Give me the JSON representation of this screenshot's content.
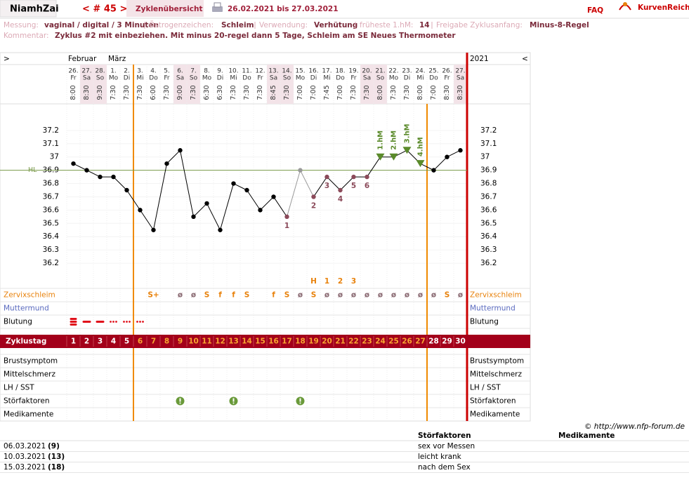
{
  "header": {
    "user": "NiamhZai",
    "cycle": "< # 45 >",
    "tab": "Zyklenübersicht",
    "range": "26.02.2021 bis 27.03.2021",
    "faq": "FAQ",
    "brand": "KurvenReich"
  },
  "info": [
    {
      "label": "Messung:",
      "value": "vaginal / digital / 3 Minuten"
    },
    {
      "label": "Östrogenzeichen:",
      "value": "Schleim"
    },
    {
      "label": "Verwendung:",
      "value": "Verhütung"
    },
    {
      "label": "früheste 1.hM:",
      "value": 14
    },
    {
      "label": "Freigabe Zyklusanfang:",
      "value": "Minus-8-Regel"
    }
  ],
  "comment": {
    "label": "Kommentar:",
    "text": "Zyklus #2  mit einbeziehen. Mit minus 20-regel dann 5 Tage,  Schleim am SE Neues Thermometer"
  },
  "chart_data": {
    "type": "line",
    "nav_left": ">",
    "nav_right": "<",
    "year": "2021",
    "months": [
      "Februar",
      null,
      null,
      "März",
      null,
      null,
      null,
      null,
      null,
      null,
      null,
      null,
      null,
      null,
      null,
      null,
      null,
      null,
      null,
      null,
      null,
      null,
      null,
      null,
      null,
      null,
      null,
      null,
      null,
      null
    ],
    "categories": [
      "26.",
      "27.",
      "28.",
      "1.",
      "2.",
      "3.",
      "4.",
      "5.",
      "6.",
      "7.",
      "8.",
      "9.",
      "10.",
      "11.",
      "12.",
      "13.",
      "14.",
      "15.",
      "16.",
      "17.",
      "18.",
      "19.",
      "20.",
      "21.",
      "22.",
      "23.",
      "24.",
      "25.",
      "26.",
      "27."
    ],
    "weekdays": [
      "Fr",
      "Sa",
      "So",
      "Mo",
      "Di",
      "Mi",
      "Do",
      "Fr",
      "Sa",
      "So",
      "Mo",
      "Di",
      "Mi",
      "Do",
      "Fr",
      "Sa",
      "So",
      "Mo",
      "Di",
      "Mi",
      "Do",
      "Fr",
      "Sa",
      "So",
      "Mo",
      "Di",
      "Mi",
      "Do",
      "Fr",
      "Sa"
    ],
    "times": [
      "8:00",
      "8:30",
      "9:30",
      "7:30",
      "7:30",
      "7:30",
      "6:00",
      "7:30",
      "9:00",
      "7:30",
      "6:30",
      "6:30",
      "7:30",
      "7:30",
      "7:30",
      "8:45",
      "7:30",
      "7:00",
      "7:00",
      "7:45",
      "7:00",
      "7:30",
      "7:30",
      "8:00",
      "7:30",
      "7:30",
      "8:00",
      "7:00",
      "8:30",
      "8:30"
    ],
    "values": [
      36.95,
      36.9,
      36.85,
      36.85,
      36.75,
      36.6,
      36.45,
      36.95,
      37.05,
      36.55,
      36.65,
      36.45,
      36.8,
      36.75,
      36.6,
      36.7,
      36.55,
      36.9,
      36.7,
      36.85,
      36.75,
      36.85,
      36.85,
      37.0,
      37.0,
      37.05,
      36.95,
      36.9,
      37.0,
      37.05
    ],
    "point_colors": [
      "#000",
      "#000",
      "#000",
      "#000",
      "#000",
      "#000",
      "#000",
      "#000",
      "#000",
      "#000",
      "#000",
      "#000",
      "#000",
      "#000",
      "#000",
      "#000",
      "#8b4a5a",
      "#999",
      "#8b4a5a",
      "#8b4a5a",
      "#8b4a5a",
      "#8b4a5a",
      "#8b4a5a",
      "#5a8a2a",
      "#5a8a2a",
      "#5a8a2a",
      "#5a8a2a",
      "#000",
      "#000",
      "#000"
    ],
    "point_labels": [
      null,
      null,
      null,
      null,
      null,
      null,
      null,
      null,
      null,
      null,
      null,
      null,
      null,
      null,
      null,
      null,
      "1",
      null,
      "2",
      "3",
      "4",
      "5",
      "6",
      null,
      null,
      null,
      null,
      null,
      null,
      null
    ],
    "hm_labels": [
      null,
      null,
      null,
      null,
      null,
      null,
      null,
      null,
      null,
      null,
      null,
      null,
      null,
      null,
      null,
      null,
      null,
      null,
      null,
      null,
      null,
      null,
      null,
      "1.hM",
      "2.hM",
      "3.hM",
      "4.hM",
      null,
      null,
      null
    ],
    "ylim": [
      36.1,
      37.4
    ],
    "yticks": [
      36.2,
      36.3,
      36.4,
      36.5,
      36.6,
      36.7,
      36.8,
      36.9,
      37,
      37.1,
      37.2
    ],
    "hl": {
      "value": 36.9,
      "label": "HL",
      "color": "#7a9a4a"
    },
    "peak": [
      null,
      null,
      null,
      null,
      null,
      null,
      null,
      null,
      null,
      null,
      null,
      null,
      null,
      null,
      null,
      null,
      null,
      null,
      "H",
      "1",
      "2",
      "3",
      null,
      null,
      null,
      null,
      null,
      null,
      null,
      null
    ],
    "rows_top": [
      {
        "label": "Zervixschleim",
        "color": "#e8820c",
        "values": [
          null,
          null,
          null,
          null,
          null,
          null,
          "S+",
          null,
          "ø",
          "ø",
          "S",
          "f",
          "f",
          "S",
          null,
          "f",
          "S",
          "ø",
          "S",
          "ø",
          "ø",
          "ø",
          "ø",
          "ø",
          "ø",
          "ø",
          "ø",
          "ø",
          "S",
          "ø"
        ],
        "symbol_colors": {
          "S+": "#e8820c",
          "S": "#e8820c",
          "f": "#e8820c",
          "ø": "#8b6b73"
        }
      },
      {
        "label": "Muttermund",
        "color": "#5a6abf"
      },
      {
        "label": "Blutung",
        "color": "#000",
        "values": [
          3,
          2,
          2,
          1,
          1,
          1,
          null,
          null,
          null,
          null,
          null,
          null,
          null,
          null,
          null,
          null,
          null,
          null,
          null,
          null,
          null,
          null,
          null,
          null,
          null,
          null,
          null,
          null,
          null,
          null
        ],
        "mark_color": "#e0101a"
      }
    ],
    "cycle_label": "Zyklustag",
    "cycle_days": [
      1,
      2,
      3,
      4,
      5,
      6,
      7,
      8,
      9,
      10,
      11,
      12,
      13,
      14,
      15,
      16,
      17,
      18,
      19,
      20,
      21,
      22,
      23,
      24,
      25,
      26,
      27,
      28,
      29,
      30
    ],
    "rows_bottom": [
      {
        "label": "Brustsymptom",
        "color": "#000"
      },
      {
        "label": "Mittelschmerz",
        "color": "#000"
      },
      {
        "label": "LH / SST",
        "color": "#000"
      },
      {
        "label": "Störfaktoren",
        "color": "#000",
        "values": [
          null,
          null,
          null,
          null,
          null,
          null,
          null,
          null,
          1,
          null,
          null,
          null,
          1,
          null,
          null,
          null,
          null,
          1,
          null,
          null,
          null,
          null,
          null,
          null,
          null,
          null,
          null,
          null,
          null,
          null
        ],
        "mark_color": "#6a9a3a"
      },
      {
        "label": "Medikamente",
        "color": "#000"
      }
    ]
  },
  "footer": {
    "copyright": "© http://www.nfp-forum.de",
    "headers": [
      "Störfaktoren",
      "Medikamente"
    ],
    "entries": [
      {
        "date": "06.03.2021",
        "day": "(9)",
        "note": "sex vor Messen"
      },
      {
        "date": "10.03.2021",
        "day": "(13)",
        "note": "leicht krank"
      },
      {
        "date": "15.03.2021",
        "day": "(18)",
        "note": "nach dem Sex"
      }
    ]
  }
}
